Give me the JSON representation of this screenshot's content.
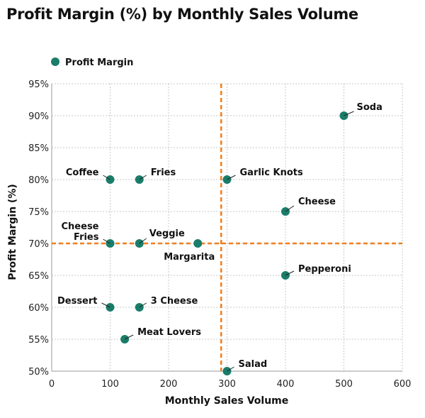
{
  "chart_data": {
    "type": "scatter",
    "title": "Profit Margin (%) by Monthly Sales Volume",
    "xlabel": "Monthly Sales Volume",
    "ylabel": "Profit Margin (%)",
    "xlim": [
      0,
      600
    ],
    "ylim": [
      50,
      95
    ],
    "x_ticks": [
      "0",
      "100",
      "200",
      "300",
      "400",
      "500",
      "600"
    ],
    "y_ticks": [
      "50%",
      "55%",
      "60%",
      "65%",
      "70%",
      "75%",
      "80%",
      "85%",
      "90%",
      "95%"
    ],
    "grid": true,
    "legend": {
      "position": "top-left",
      "entries": [
        "Profit Margin"
      ]
    },
    "colors": {
      "points": "#1a7d6a",
      "reference_lines": "#f07f1e",
      "grid": "#c8c8c8"
    },
    "reference_lines": {
      "x": 290,
      "y": 70
    },
    "series": [
      {
        "name": "Profit Margin",
        "points": [
          {
            "label": "Soda",
            "x": 500,
            "y": 90
          },
          {
            "label": "Coffee",
            "x": 100,
            "y": 80
          },
          {
            "label": "Fries",
            "x": 150,
            "y": 80
          },
          {
            "label": "Garlic Knots",
            "x": 300,
            "y": 80
          },
          {
            "label": "Cheese",
            "x": 400,
            "y": 75
          },
          {
            "label": "Cheese Fries",
            "x": 100,
            "y": 70
          },
          {
            "label": "Veggie",
            "x": 150,
            "y": 70
          },
          {
            "label": "Margarita",
            "x": 250,
            "y": 70
          },
          {
            "label": "Pepperoni",
            "x": 400,
            "y": 65
          },
          {
            "label": "Dessert",
            "x": 100,
            "y": 60
          },
          {
            "label": "3 Cheese",
            "x": 150,
            "y": 60
          },
          {
            "label": "Meat Lovers",
            "x": 125,
            "y": 55
          },
          {
            "label": "Salad",
            "x": 300,
            "y": 50
          }
        ]
      }
    ]
  }
}
